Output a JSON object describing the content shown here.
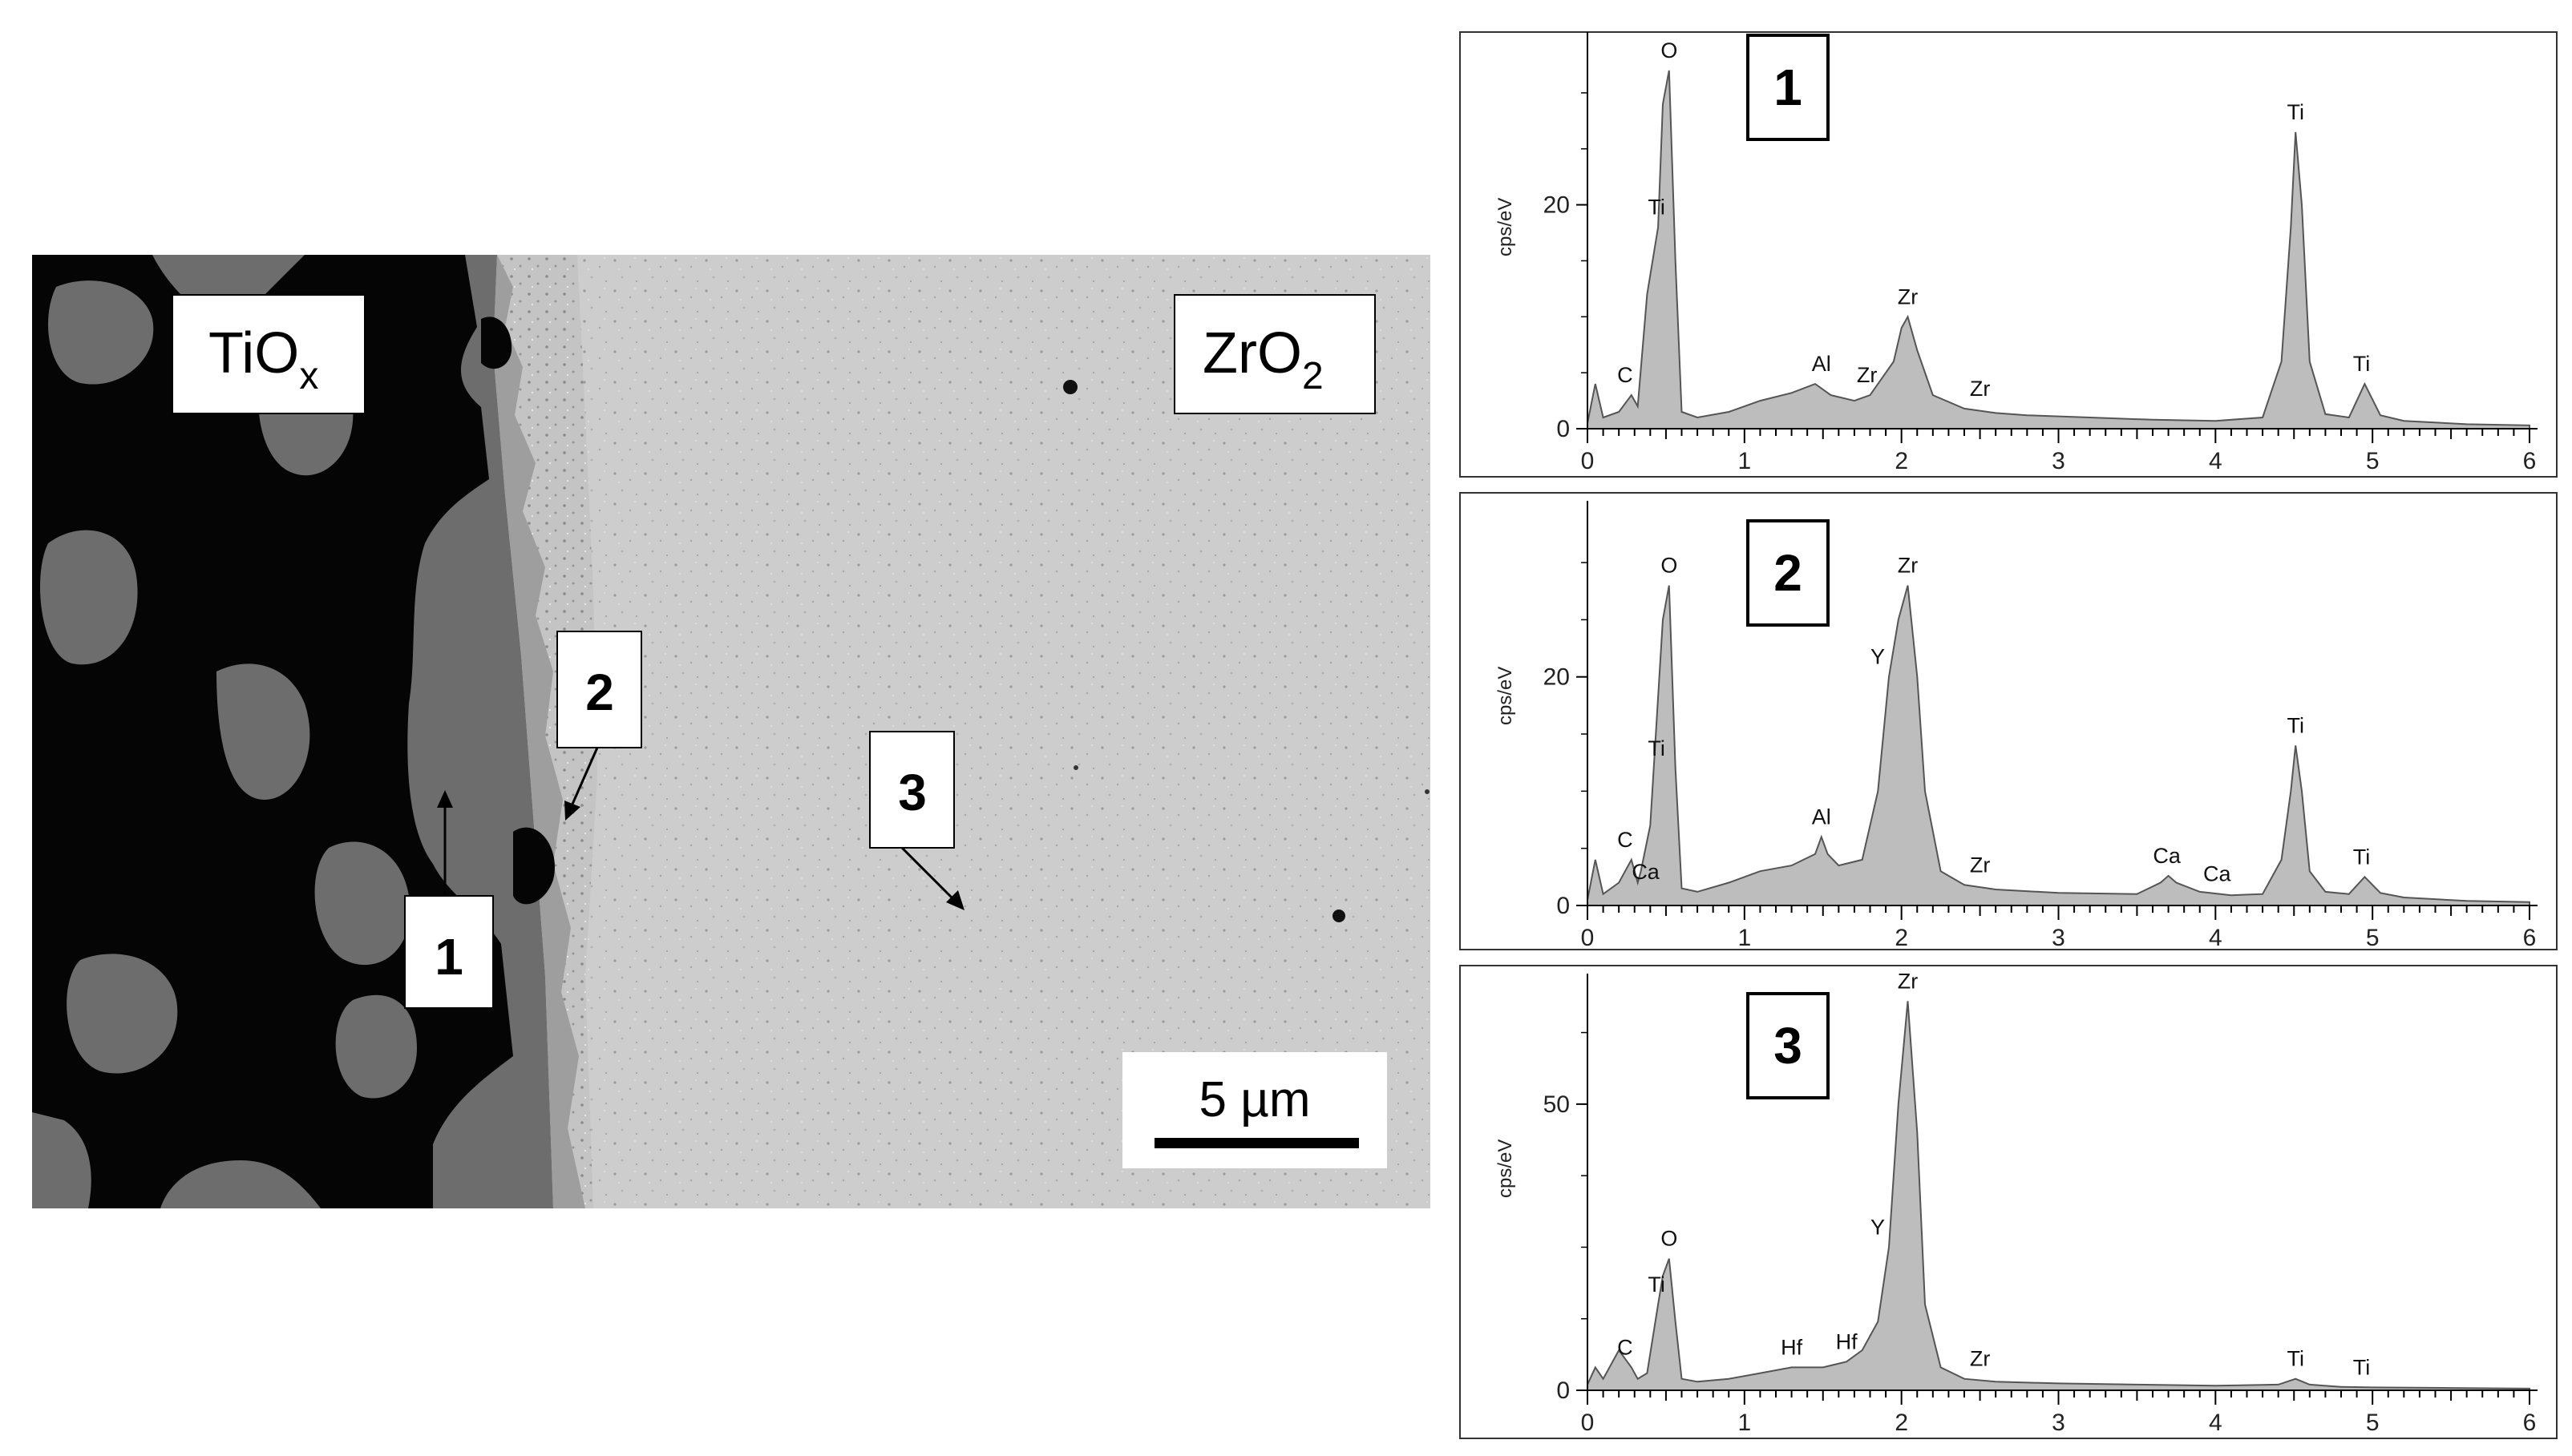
{
  "figure": {
    "sem": {
      "phase_left_main": "TiO",
      "phase_left_sub": "x",
      "phase_right_main": "ZrO",
      "phase_right_sub": "2",
      "point_labels": [
        "1",
        "2",
        "3"
      ],
      "scale_bar_text": "5 µm",
      "colors": {
        "dark_phase": "#050505",
        "grey_phase": "#6b6b6b",
        "matrix": "#cfcfcf"
      }
    }
  },
  "chart_data": [
    {
      "type": "area",
      "panel_label": "1",
      "xlim": [
        0,
        6
      ],
      "ylim": [
        0,
        34
      ],
      "yticks": [
        0,
        20
      ],
      "xticks": [
        0,
        1,
        2,
        3,
        4,
        5,
        6
      ],
      "ylabel": "cps/eV",
      "x": [
        0,
        0.05,
        0.1,
        0.2,
        0.28,
        0.32,
        0.38,
        0.45,
        0.48,
        0.52,
        0.56,
        0.6,
        0.7,
        0.9,
        1.1,
        1.3,
        1.45,
        1.5,
        1.55,
        1.7,
        1.8,
        1.95,
        2.0,
        2.04,
        2.1,
        2.2,
        2.4,
        2.6,
        2.8,
        3.2,
        3.6,
        4.0,
        4.3,
        4.42,
        4.48,
        4.51,
        4.55,
        4.6,
        4.7,
        4.85,
        4.95,
        5.05,
        5.2,
        5.6,
        6.0
      ],
      "y": [
        0.5,
        4,
        1,
        1.5,
        3,
        2,
        12,
        18,
        29,
        32,
        15,
        1.5,
        1,
        1.5,
        2.5,
        3.2,
        4,
        3.5,
        3,
        2.5,
        3,
        6,
        9,
        10,
        7,
        3,
        1.8,
        1.4,
        1.2,
        1,
        0.8,
        0.7,
        1,
        6,
        18,
        26.5,
        20,
        6,
        1.3,
        1,
        4,
        1.2,
        0.7,
        0.4,
        0.3
      ],
      "peaks": [
        {
          "label": "O",
          "x": 0.52,
          "y": 32
        },
        {
          "label": "Ti",
          "x": 0.45,
          "y": 18
        },
        {
          "label": "C",
          "x": 0.28,
          "y": 3
        },
        {
          "label": "Al",
          "x": 1.49,
          "y": 4
        },
        {
          "label": "Zr",
          "x": 1.78,
          "y": 3
        },
        {
          "label": "Zr",
          "x": 2.04,
          "y": 10
        },
        {
          "label": "Zr",
          "x": 2.5,
          "y": 1.8
        },
        {
          "label": "Ti",
          "x": 4.51,
          "y": 26.5
        },
        {
          "label": "Ti",
          "x": 4.93,
          "y": 4
        }
      ]
    },
    {
      "type": "area",
      "panel_label": "2",
      "xlim": [
        0,
        6
      ],
      "ylim": [
        0,
        34
      ],
      "yticks": [
        0,
        20
      ],
      "xticks": [
        0,
        1,
        2,
        3,
        4,
        5,
        6
      ],
      "ylabel": "cps/eV",
      "x": [
        0,
        0.05,
        0.1,
        0.2,
        0.28,
        0.32,
        0.34,
        0.4,
        0.48,
        0.52,
        0.56,
        0.6,
        0.7,
        0.9,
        1.1,
        1.3,
        1.45,
        1.49,
        1.53,
        1.6,
        1.75,
        1.85,
        1.92,
        1.98,
        2.04,
        2.1,
        2.15,
        2.25,
        2.4,
        2.6,
        3.0,
        3.5,
        3.65,
        3.7,
        3.75,
        3.9,
        4.1,
        4.3,
        4.42,
        4.48,
        4.51,
        4.55,
        4.6,
        4.7,
        4.85,
        4.95,
        5.05,
        5.2,
        5.6,
        6.0
      ],
      "y": [
        0.5,
        4,
        1,
        2,
        4,
        2,
        3,
        7,
        25,
        28,
        12,
        1.5,
        1.2,
        2,
        3,
        3.5,
        4.5,
        6,
        4.5,
        3.5,
        4,
        10,
        20,
        25,
        28,
        20,
        10,
        3,
        1.8,
        1.4,
        1.1,
        1,
        2,
        2.6,
        2,
        1.2,
        0.9,
        1,
        4,
        10,
        14,
        10,
        3,
        1.2,
        1,
        2.5,
        1.1,
        0.7,
        0.4,
        0.3
      ],
      "peaks": [
        {
          "label": "O",
          "x": 0.52,
          "y": 28
        },
        {
          "label": "Ti",
          "x": 0.45,
          "y": 12
        },
        {
          "label": "C",
          "x": 0.28,
          "y": 4
        },
        {
          "label": "Ca",
          "x": 0.34,
          "y": 3
        },
        {
          "label": "Al",
          "x": 1.49,
          "y": 6
        },
        {
          "label": "Y",
          "x": 1.92,
          "y": 20
        },
        {
          "label": "Zr",
          "x": 2.04,
          "y": 28
        },
        {
          "label": "Zr",
          "x": 2.5,
          "y": 1.8
        },
        {
          "label": "Ca",
          "x": 3.69,
          "y": 2.6
        },
        {
          "label": "Ca",
          "x": 4.01,
          "y": 1
        },
        {
          "label": "Ti",
          "x": 4.51,
          "y": 14
        },
        {
          "label": "Ti",
          "x": 4.93,
          "y": 2.5
        }
      ]
    },
    {
      "type": "area",
      "panel_label": "3",
      "xlim": [
        0,
        6
      ],
      "ylim": [
        0,
        70
      ],
      "yticks": [
        0,
        50
      ],
      "xticks": [
        0,
        1,
        2,
        3,
        4,
        5,
        6
      ],
      "ylabel": "cps/eV",
      "x": [
        0,
        0.05,
        0.1,
        0.2,
        0.28,
        0.32,
        0.38,
        0.45,
        0.48,
        0.52,
        0.56,
        0.6,
        0.7,
        0.9,
        1.1,
        1.3,
        1.5,
        1.65,
        1.75,
        1.85,
        1.92,
        1.98,
        2.04,
        2.1,
        2.15,
        2.25,
        2.4,
        2.6,
        3.0,
        3.5,
        4.0,
        4.4,
        4.51,
        4.6,
        4.8,
        5.0,
        5.5,
        6.0
      ],
      "y": [
        1,
        4,
        2,
        7,
        4,
        2,
        3,
        15,
        20,
        23,
        12,
        2,
        1.5,
        2,
        3,
        4,
        4,
        5,
        7,
        12,
        25,
        50,
        68,
        45,
        15,
        4,
        2,
        1.5,
        1.2,
        1,
        0.8,
        1,
        2,
        1,
        0.6,
        0.5,
        0.4,
        0.3
      ],
      "peaks": [
        {
          "label": "O",
          "x": 0.52,
          "y": 23
        },
        {
          "label": "C",
          "x": 0.28,
          "y": 4
        },
        {
          "label": "Ti",
          "x": 0.45,
          "y": 15
        },
        {
          "label": "Hf",
          "x": 1.3,
          "y": 4
        },
        {
          "label": "Hf",
          "x": 1.65,
          "y": 5
        },
        {
          "label": "Y",
          "x": 1.92,
          "y": 25
        },
        {
          "label": "Zr",
          "x": 2.04,
          "y": 68
        },
        {
          "label": "Zr",
          "x": 2.5,
          "y": 2
        },
        {
          "label": "Ti",
          "x": 4.51,
          "y": 2
        },
        {
          "label": "Ti",
          "x": 4.93,
          "y": 0.5
        }
      ]
    }
  ]
}
